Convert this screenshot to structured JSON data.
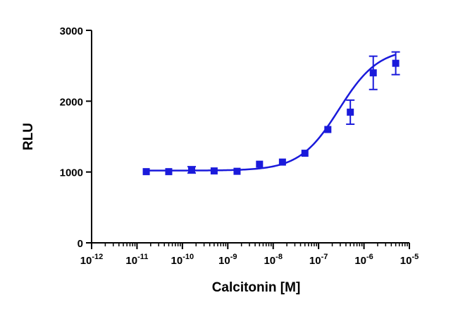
{
  "chart_data": {
    "type": "scatter",
    "title": "",
    "xlabel": "Calcitonin [M]",
    "ylabel": "RLU",
    "x_scale": "log",
    "xlim": [
      1e-12,
      1e-05
    ],
    "ylim": [
      0,
      3000
    ],
    "x_tick_labels": [
      {
        "base": "10",
        "exp": "-12"
      },
      {
        "base": "10",
        "exp": "-11"
      },
      {
        "base": "10",
        "exp": "-10"
      },
      {
        "base": "10",
        "exp": "-9"
      },
      {
        "base": "10",
        "exp": "-8"
      },
      {
        "base": "10",
        "exp": "-7"
      },
      {
        "base": "10",
        "exp": "-6"
      },
      {
        "base": "10",
        "exp": "-5"
      }
    ],
    "y_ticks": [
      0,
      1000,
      2000,
      3000
    ],
    "y_tick_labels": [
      "0",
      "1000",
      "2000",
      "3000"
    ],
    "grid": false,
    "legend": "none",
    "series": [
      {
        "marker": "square",
        "color": "#1a1adb",
        "x": [
          1.6e-11,
          5e-11,
          1.6e-10,
          5e-10,
          1.6e-09,
          5e-09,
          1.6e-08,
          5e-08,
          1.6e-07,
          5e-07,
          1.6e-06,
          5e-06
        ],
        "y": [
          1005,
          1005,
          1030,
          1015,
          1010,
          1110,
          1140,
          1265,
          1600,
          1845,
          2400,
          2535
        ],
        "error": [
          0,
          0,
          45,
          0,
          0,
          0,
          0,
          0,
          0,
          170,
          235,
          160
        ],
        "fit": {
          "bottom": 1020,
          "top": 2750,
          "log_ec50": -6.55,
          "hill": 1.0
        }
      }
    ]
  }
}
